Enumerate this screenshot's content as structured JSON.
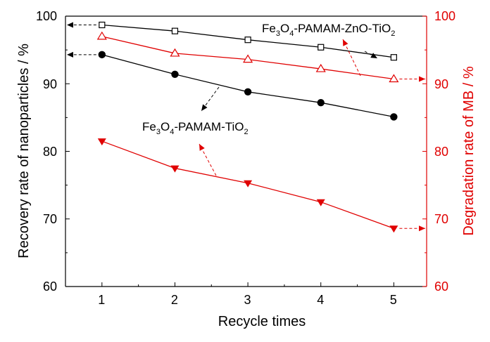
{
  "chart_data": {
    "type": "line",
    "xlabel": "Recycle times",
    "ylabel_left": "Recovery rate of nanoparticles / %",
    "ylabel_right": "Degradation rate of MB / %",
    "x": [
      1,
      2,
      3,
      4,
      5
    ],
    "x_ticks": [
      "1",
      "2",
      "3",
      "4",
      "5"
    ],
    "xlim": [
      0.5,
      5.45
    ],
    "ylim_left": [
      60,
      100
    ],
    "ylim_right": [
      60,
      100
    ],
    "y_ticks_left": [
      "60",
      "70",
      "80",
      "90",
      "100"
    ],
    "y_ticks_right": [
      "60",
      "70",
      "80",
      "90",
      "100"
    ],
    "grid": false,
    "colors": {
      "left_axis": "#000000",
      "right_axis": "#e00000"
    },
    "series": [
      {
        "key": "recovery_zno",
        "axis": "left",
        "color": "#000000",
        "marker": "open-square",
        "values": [
          98.7,
          97.8,
          96.5,
          95.4,
          93.9
        ]
      },
      {
        "key": "recovery_tio2",
        "axis": "left",
        "color": "#000000",
        "marker": "filled-circle",
        "values": [
          94.3,
          91.4,
          88.8,
          87.2,
          85.1
        ]
      },
      {
        "key": "degradation_zno",
        "axis": "right",
        "color": "#e00000",
        "marker": "open-triangle-up",
        "values": [
          97.0,
          94.5,
          93.6,
          92.2,
          90.7
        ]
      },
      {
        "key": "degradation_tio2",
        "axis": "right",
        "color": "#e00000",
        "marker": "filled-triangle-down",
        "values": [
          81.5,
          77.5,
          75.3,
          72.5,
          68.6
        ]
      }
    ],
    "annotations": [
      {
        "key": "zno",
        "parts": {
          "a": "Fe",
          "b": "3",
          "c": "O",
          "d": "4",
          "e": "-PAMAM-ZnO-TiO",
          "f": "2"
        }
      },
      {
        "key": "tio2",
        "parts": {
          "a": "Fe",
          "b": "3",
          "c": "O",
          "d": "4",
          "e": "-PAMAM-TiO",
          "f": "2"
        }
      }
    ]
  }
}
